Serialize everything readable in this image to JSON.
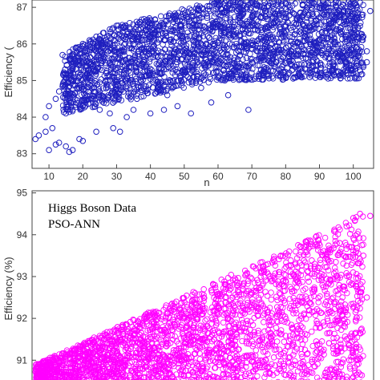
{
  "chart_data": [
    {
      "type": "scatter",
      "title": "",
      "xlabel": "n",
      "ylabel": "Efficiency (",
      "xlim": [
        5,
        106
      ],
      "ylim": [
        82.6,
        87.2
      ],
      "x_ticks": [
        10,
        20,
        30,
        40,
        50,
        60,
        70,
        80,
        90,
        100
      ],
      "y_ticks": [
        83,
        84,
        85,
        86,
        87
      ],
      "marker": "open-circle",
      "color": "#1f1fbf",
      "grid": false,
      "series": [
        {
          "points": [
            [
              6,
              83.4
            ],
            [
              7,
              83.5
            ],
            [
              9,
              83.6
            ],
            [
              10,
              83.1
            ],
            [
              11,
              83.7
            ],
            [
              12,
              83.25
            ],
            [
              13,
              83.3
            ],
            [
              15,
              83.2
            ],
            [
              16,
              83.05
            ],
            [
              17,
              83.1
            ],
            [
              19,
              83.4
            ],
            [
              20,
              83.35
            ],
            [
              24,
              83.6
            ],
            [
              29,
              83.7
            ],
            [
              31,
              83.6
            ],
            [
              9,
              84.0
            ],
            [
              10,
              84.3
            ],
            [
              12,
              84.5
            ],
            [
              13,
              84.7
            ],
            [
              15,
              84.1
            ],
            [
              17,
              84.2
            ],
            [
              20,
              84.3
            ],
            [
              25,
              84.2
            ],
            [
              28,
              84.1
            ],
            [
              33,
              84.0
            ],
            [
              35,
              84.2
            ],
            [
              40,
              84.1
            ],
            [
              44,
              84.2
            ],
            [
              48,
              84.3
            ],
            [
              52,
              84.1
            ],
            [
              58,
              84.4
            ],
            [
              63,
              84.6
            ],
            [
              69,
              84.2
            ],
            [
              14,
              85.7
            ],
            [
              16,
              85.6
            ],
            [
              18,
              85.9
            ],
            [
              20,
              86.0
            ],
            [
              22,
              86.1
            ],
            [
              24,
              86.2
            ],
            [
              26,
              86.3
            ],
            [
              28,
              86.4
            ],
            [
              30,
              86.5
            ],
            [
              23,
              85.4
            ],
            [
              27,
              85.2
            ],
            [
              32,
              85.8
            ],
            [
              38,
              85.5
            ],
            [
              44,
              85.3
            ],
            [
              51,
              85.6
            ],
            [
              57,
              85.4
            ],
            [
              64,
              85.2
            ],
            [
              70,
              85.5
            ],
            [
              78,
              85.3
            ],
            [
              86,
              85.6
            ],
            [
              94,
              85.4
            ],
            [
              100,
              85.2
            ],
            [
              104,
              85.8
            ],
            [
              95,
              86.4
            ],
            [
              99,
              86.7
            ],
            [
              101,
              87.0
            ],
            [
              103,
              86.2
            ],
            [
              105,
              86.9
            ],
            [
              104,
              85.5
            ],
            [
              45,
              84.6
            ],
            [
              55,
              84.8
            ],
            [
              36,
              84.5
            ],
            [
              27,
              84.9
            ],
            [
              19,
              84.8
            ],
            [
              62,
              85.0
            ],
            [
              92,
              85.1
            ]
          ]
        }
      ],
      "band": {
        "x": [
          14,
          30,
          60,
          103
        ],
        "y_low": [
          84.1,
          84.4,
          85.0,
          85.05
        ],
        "y_high": [
          85.7,
          86.5,
          87.2,
          87.2
        ]
      }
    },
    {
      "type": "scatter",
      "title": "",
      "annotations": [
        "Higgs Boson Data",
        "PSO-ANN"
      ],
      "xlabel": "",
      "ylabel": "Efficiency (%)",
      "xlim": [
        5,
        106
      ],
      "ylim": [
        90.45,
        95.05
      ],
      "y_ticks": [
        91,
        92,
        93,
        94,
        95
      ],
      "marker": "open-circle",
      "color": "#ff00ff",
      "grid": false,
      "series": [
        {
          "points": [
            [
              7,
              90.5
            ],
            [
              9,
              90.6
            ],
            [
              11,
              90.55
            ],
            [
              13,
              90.7
            ],
            [
              16,
              90.6
            ],
            [
              18,
              90.8
            ],
            [
              20,
              91.0
            ],
            [
              22,
              91.2
            ],
            [
              24,
              91.1
            ],
            [
              27,
              91.4
            ],
            [
              30,
              91.5
            ],
            [
              35,
              91.6
            ],
            [
              42,
              91.8
            ],
            [
              50,
              92.0
            ],
            [
              60,
              92.3
            ],
            [
              70,
              92.6
            ],
            [
              80,
              92.9
            ],
            [
              90,
              93.2
            ],
            [
              96,
              93.8
            ],
            [
              98,
              94.2
            ],
            [
              100,
              94.4
            ],
            [
              102,
              94.5
            ],
            [
              105,
              94.45
            ],
            [
              103,
              93.5
            ],
            [
              104,
              92.5
            ],
            [
              101,
              91.0
            ],
            [
              98,
              91.5
            ],
            [
              95,
              90.8
            ],
            [
              100,
              90.6
            ],
            [
              85,
              90.9
            ],
            [
              75,
              90.7
            ],
            [
              65,
              90.8
            ],
            [
              55,
              90.75
            ]
          ]
        }
      ],
      "band": {
        "x": [
          6,
          103
        ],
        "y_low": [
          90.45,
          90.45
        ],
        "y_high": [
          90.9,
          94.5
        ]
      }
    }
  ]
}
